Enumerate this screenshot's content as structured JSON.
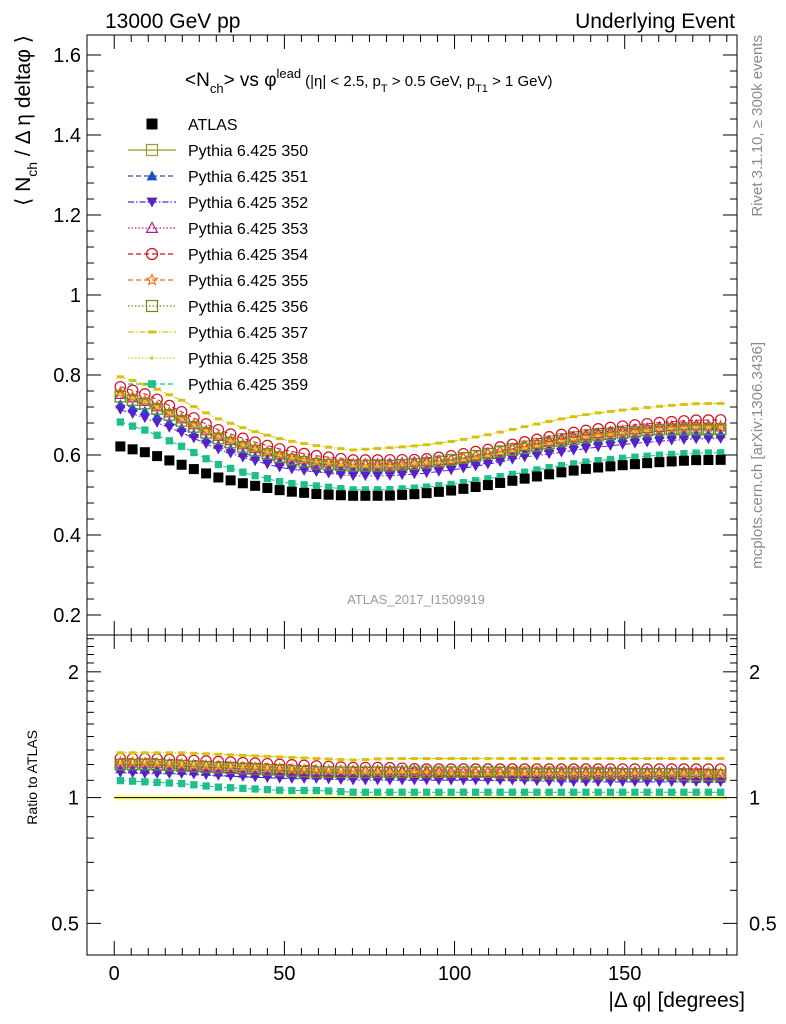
{
  "header": {
    "left": "13000 GeV pp",
    "right": "Underlying Event"
  },
  "side_labels": {
    "rivet": "Rivet 3.1.10, ≥ 300k events",
    "mcplots": "mcplots.cern.ch [arXiv:1306.3436]"
  },
  "watermark": "ATLAS_2017_I1509919",
  "title": {
    "n": "<N",
    "ch": "ch",
    "vs": "> vs φ",
    "lead": "lead",
    "cut1": "(|η| < 2.5, p",
    "T": "T",
    "cut2": " > 0.5 GeV, p",
    "T1": "T1",
    "cut3": " > 1 GeV)"
  },
  "ylabel_top": {
    "a": "⟨ N",
    "ch": "ch",
    "b": " / Δ η deltaφ ⟩"
  },
  "ylabel_bottom": "Ratio to ATLAS",
  "xlabel": "|Δ φ| [degrees]",
  "colors": {
    "axis": "#000000",
    "band": "#ffff99"
  },
  "chart_data": [
    {
      "type": "scatter",
      "panel": "main",
      "xlim": [
        -8,
        183
      ],
      "ylim": [
        0.15,
        1.65
      ],
      "yscale": "linear",
      "xticks": [
        0,
        50,
        100,
        150
      ],
      "yticks": [
        0.2,
        0.4,
        0.6,
        0.8,
        1,
        1.2,
        1.4,
        1.6
      ],
      "ytick_labels": [
        "0.2",
        "0.4",
        "0.6",
        "0.8",
        "1",
        "1.2",
        "1.4",
        "1.6"
      ],
      "legend_position": "top-left",
      "x_bin_width": 3.6,
      "data_anchor_x": [
        0,
        10,
        20,
        30,
        40,
        50,
        60,
        70,
        80,
        90,
        100,
        110,
        120,
        130,
        140,
        150,
        160,
        170,
        180
      ],
      "data_anchor_y": [
        0.625,
        0.605,
        0.575,
        0.545,
        0.525,
        0.51,
        0.502,
        0.498,
        0.498,
        0.503,
        0.512,
        0.525,
        0.54,
        0.555,
        0.567,
        0.575,
        0.582,
        0.587,
        0.588
      ],
      "series": [
        {
          "name": "ATLAS",
          "color": "#000000",
          "marker": "square-filled",
          "line": "none",
          "ratio_anchor_y": [
            1.0,
            1.0,
            1.0,
            1.0,
            1.0,
            1.0,
            1.0,
            1.0,
            1.0,
            1.0,
            1.0,
            1.0,
            1.0,
            1.0,
            1.0,
            1.0,
            1.0,
            1.0,
            1.0
          ]
        },
        {
          "name": "Pythia 6.425 350",
          "color": "#999933",
          "marker": "square-open",
          "line": "solid",
          "ratio_anchor_y": [
            1.2,
            1.2,
            1.19,
            1.18,
            1.17,
            1.16,
            1.15,
            1.15,
            1.15,
            1.15,
            1.15,
            1.15,
            1.15,
            1.15,
            1.15,
            1.14,
            1.14,
            1.14,
            1.13
          ]
        },
        {
          "name": "Pythia 6.425 351",
          "color": "#1f4fc8",
          "marker": "triangle-up-filled",
          "line": "dashed",
          "ratio_anchor_y": [
            1.17,
            1.17,
            1.16,
            1.15,
            1.14,
            1.14,
            1.13,
            1.13,
            1.13,
            1.13,
            1.13,
            1.12,
            1.12,
            1.12,
            1.12,
            1.12,
            1.12,
            1.11,
            1.11
          ]
        },
        {
          "name": "Pythia 6.425 352",
          "color": "#5a20c8",
          "marker": "triangle-down-filled",
          "line": "dashdot",
          "ratio_anchor_y": [
            1.15,
            1.14,
            1.14,
            1.13,
            1.12,
            1.11,
            1.11,
            1.1,
            1.1,
            1.1,
            1.1,
            1.1,
            1.1,
            1.09,
            1.09,
            1.09,
            1.09,
            1.09,
            1.09
          ]
        },
        {
          "name": "Pythia 6.425 353",
          "color": "#b0208a",
          "marker": "triangle-up-open",
          "line": "dotted",
          "ratio_anchor_y": [
            1.21,
            1.21,
            1.2,
            1.19,
            1.18,
            1.17,
            1.16,
            1.16,
            1.16,
            1.16,
            1.15,
            1.15,
            1.15,
            1.15,
            1.15,
            1.15,
            1.15,
            1.15,
            1.14
          ]
        },
        {
          "name": "Pythia 6.425 354",
          "color": "#d4101e",
          "marker": "circle-open",
          "line": "dashed",
          "ratio_anchor_y": [
            1.24,
            1.24,
            1.23,
            1.22,
            1.21,
            1.2,
            1.19,
            1.18,
            1.18,
            1.17,
            1.17,
            1.17,
            1.17,
            1.17,
            1.17,
            1.17,
            1.17,
            1.17,
            1.17
          ]
        },
        {
          "name": "Pythia 6.425 355",
          "color": "#ef6e14",
          "marker": "star-open",
          "line": "dashed",
          "ratio_anchor_y": [
            1.22,
            1.21,
            1.2,
            1.19,
            1.18,
            1.17,
            1.16,
            1.16,
            1.15,
            1.15,
            1.15,
            1.15,
            1.15,
            1.14,
            1.14,
            1.14,
            1.14,
            1.14,
            1.14
          ]
        },
        {
          "name": "Pythia 6.425 356",
          "color": "#6e8c1e",
          "marker": "square-open",
          "line": "dotted",
          "ratio_anchor_y": [
            1.2,
            1.2,
            1.19,
            1.18,
            1.17,
            1.16,
            1.15,
            1.15,
            1.15,
            1.15,
            1.15,
            1.15,
            1.14,
            1.14,
            1.14,
            1.14,
            1.14,
            1.13,
            1.13
          ]
        },
        {
          "name": "Pythia 6.425 357",
          "color": "#d8c20a",
          "marker": "dash",
          "line": "dashdot",
          "ratio_anchor_y": [
            1.28,
            1.28,
            1.28,
            1.27,
            1.26,
            1.25,
            1.24,
            1.23,
            1.24,
            1.24,
            1.24,
            1.24,
            1.24,
            1.24,
            1.24,
            1.24,
            1.24,
            1.24,
            1.24
          ]
        },
        {
          "name": "Pythia 6.425 358",
          "color": "#c8d614",
          "marker": "dot",
          "line": "dotted",
          "ratio_anchor_y": [
            1.21,
            1.21,
            1.2,
            1.19,
            1.18,
            1.17,
            1.16,
            1.15,
            1.15,
            1.15,
            1.14,
            1.14,
            1.14,
            1.14,
            1.14,
            1.14,
            1.14,
            1.14,
            1.14
          ]
        },
        {
          "name": "Pythia 6.425 359",
          "color": "#1fbf8c",
          "marker": "square-filled-small",
          "line": "dashed",
          "ratio_anchor_y": [
            1.1,
            1.09,
            1.08,
            1.06,
            1.05,
            1.04,
            1.04,
            1.03,
            1.03,
            1.03,
            1.03,
            1.03,
            1.03,
            1.03,
            1.03,
            1.03,
            1.03,
            1.03,
            1.03
          ]
        }
      ]
    },
    {
      "type": "scatter",
      "panel": "ratio",
      "xlim": [
        -8,
        183
      ],
      "ylim": [
        0.42,
        2.45
      ],
      "yscale": "log",
      "xticks": [
        0,
        50,
        100,
        150
      ],
      "xtick_labels": [
        "0",
        "50",
        "100",
        "150"
      ],
      "yticks": [
        0.5,
        1,
        2
      ],
      "ytick_labels": [
        "0.5",
        "1",
        "2"
      ],
      "reference_band": [
        0.985,
        1.015
      ]
    }
  ]
}
